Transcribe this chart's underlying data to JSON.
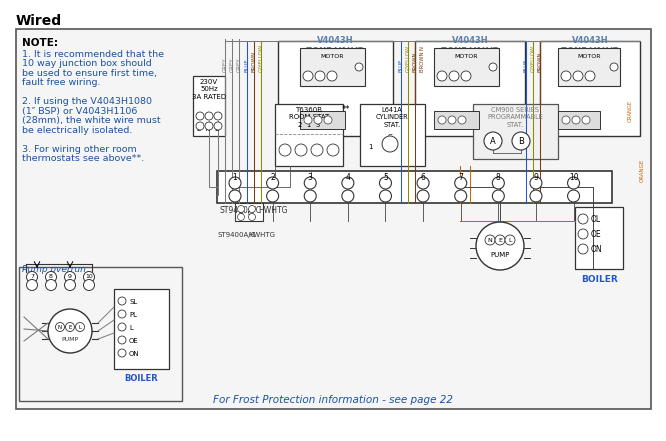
{
  "title": "Wired",
  "bg_color": "#ffffff",
  "border_color": "#000000",
  "note_bold": "NOTE:",
  "note_lines": [
    "1. It is recommended that the",
    "10 way junction box should",
    "be used to ensure first time,",
    "fault free wiring.",
    "",
    "2. If using the V4043H1080",
    "(1″ BSP) or V4043H1106",
    "(28mm), the white wire must",
    "be electrically isolated.",
    "",
    "3. For wiring other room",
    "thermostats see above**."
  ],
  "note_color": "#1a52a0",
  "note_bold_color": "#000000",
  "pump_overrun_label": "Pump overrun",
  "frost_text": "For Frost Protection information - see page 22",
  "frost_color": "#1a52a0",
  "zone_valve_labels": [
    "V4043H\nZONE VALVE\nHTG1",
    "V4043H\nZONE VALVE\nHW",
    "V4043H\nZONE VALVE\nHTG2"
  ],
  "zone_valve_color": "#5b7faa",
  "motor_label": "MOTOR",
  "power_label": "230V\n50Hz\n3A RATED",
  "lne_label": "L  N  E",
  "room_stat_label": "T6360B\nROOM STAT\n2  1  3",
  "cylinder_stat_label": "L641A\nCYLINDER\nSTAT.",
  "cm900_label": "CM900 SERIES\nPROGRAMMABLE\nSTAT.",
  "st9400_label": "ST9400A/C",
  "hw_htg_label": "HWHTG",
  "boiler_label": "BOILER",
  "pump_label": "PUMP",
  "grey": "#7a7a7a",
  "blue": "#2255cc",
  "brown": "#7a3a10",
  "gyellow": "#8a8a00",
  "orange": "#cc6600",
  "black": "#111111",
  "junction_nums": [
    "1",
    "2",
    "3",
    "4",
    "5",
    "6",
    "7",
    "8",
    "9",
    "10"
  ]
}
